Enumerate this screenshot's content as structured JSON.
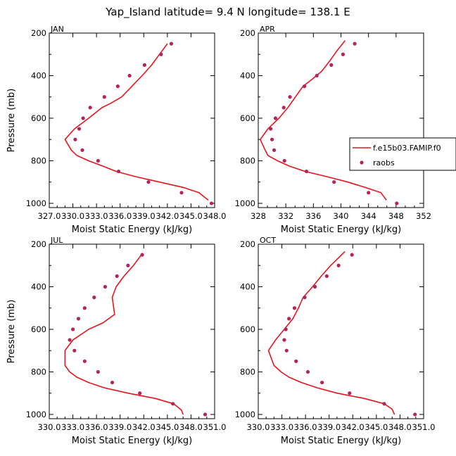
{
  "title": "Yap_Island  latitude= 9.4 N longitude= 138.1 E",
  "colors": {
    "model": "#e8141c",
    "raobs": "#b3245a",
    "axis": "#000000"
  },
  "legend": {
    "model_label": "f.e15b03.FAMIP.f0",
    "raobs_label": "raobs",
    "placement": "overlapping right edge of APR panel"
  },
  "chart_data": [
    {
      "type": "line",
      "panel_label": "JAN",
      "xlabel": "Moist Static Energy (kJ/kg)",
      "ylabel": "Pressure (mb)",
      "xlim": [
        327.0,
        348.0
      ],
      "ylim": [
        1020,
        200
      ],
      "xticks": [
        327,
        330,
        333,
        336,
        339,
        342,
        345,
        348
      ],
      "xtick_labels": [
        "327.0",
        "330.0",
        "333.0",
        "336.0",
        "339.0",
        "342.0",
        "345.0",
        "348.0"
      ],
      "yticks": [
        200,
        400,
        600,
        800,
        1000
      ],
      "ytick_labels": [
        "200",
        "400",
        "600",
        "800",
        "1000"
      ],
      "series": [
        {
          "name": "f.e15b03.FAMIP.f0",
          "style": "line",
          "points": [
            [
              347.2,
              985
            ],
            [
              346.0,
              950
            ],
            [
              344.0,
              925
            ],
            [
              341.0,
              900
            ],
            [
              338.0,
              875
            ],
            [
              335.5,
              850
            ],
            [
              333.8,
              825
            ],
            [
              332.0,
              800
            ],
            [
              330.5,
              775
            ],
            [
              329.8,
              750
            ],
            [
              329.0,
              700
            ],
            [
              330.2,
              650
            ],
            [
              332.0,
              600
            ],
            [
              333.7,
              550
            ],
            [
              334.8,
              530
            ],
            [
              336.2,
              500
            ],
            [
              337.5,
              450
            ],
            [
              338.8,
              400
            ],
            [
              340.0,
              350
            ],
            [
              341.0,
              300
            ],
            [
              342.0,
              250
            ]
          ]
        },
        {
          "name": "raobs",
          "style": "markers",
          "points": [
            [
              347.6,
              1000
            ],
            [
              343.8,
              950
            ],
            [
              339.6,
              900
            ],
            [
              335.8,
              850
            ],
            [
              333.2,
              800
            ],
            [
              331.2,
              750
            ],
            [
              330.3,
              700
            ],
            [
              330.8,
              650
            ],
            [
              331.3,
              600
            ],
            [
              332.2,
              550
            ],
            [
              334.0,
              500
            ],
            [
              335.7,
              450
            ],
            [
              337.2,
              400
            ],
            [
              339.1,
              350
            ],
            [
              341.2,
              300
            ],
            [
              342.5,
              250
            ]
          ]
        }
      ]
    },
    {
      "type": "line",
      "panel_label": "APR",
      "xlabel": "Moist Static Energy (kJ/kg)",
      "ylabel": "",
      "xlim": [
        328,
        352
      ],
      "ylim": [
        1020,
        200
      ],
      "xticks": [
        328,
        332,
        336,
        340,
        344,
        348,
        352
      ],
      "xtick_labels": [
        "328",
        "332",
        "336",
        "340",
        "344",
        "348",
        "352"
      ],
      "yticks": [
        200,
        400,
        600,
        800,
        1000
      ],
      "ytick_labels": [
        "200",
        "400",
        "600",
        "800",
        "1000"
      ],
      "series": [
        {
          "name": "f.e15b03.FAMIP.f0",
          "style": "line",
          "points": [
            [
              346.6,
              985
            ],
            [
              345.8,
              950
            ],
            [
              343.5,
              925
            ],
            [
              341.0,
              900
            ],
            [
              338.0,
              875
            ],
            [
              334.8,
              850
            ],
            [
              332.5,
              825
            ],
            [
              330.8,
              800
            ],
            [
              329.4,
              775
            ],
            [
              329.0,
              750
            ],
            [
              328.3,
              700
            ],
            [
              329.4,
              650
            ],
            [
              331.0,
              600
            ],
            [
              332.3,
              550
            ],
            [
              333.4,
              500
            ],
            [
              334.5,
              450
            ],
            [
              335.7,
              420
            ],
            [
              337.2,
              380
            ],
            [
              338.4,
              330
            ],
            [
              339.5,
              280
            ],
            [
              340.6,
              235
            ]
          ]
        },
        {
          "name": "raobs",
          "style": "markers",
          "points": [
            [
              348.1,
              1000
            ],
            [
              344.0,
              950
            ],
            [
              339.0,
              900
            ],
            [
              335.0,
              850
            ],
            [
              331.8,
              800
            ],
            [
              330.3,
              750
            ],
            [
              330.0,
              700
            ],
            [
              329.8,
              650
            ],
            [
              330.5,
              600
            ],
            [
              331.7,
              550
            ],
            [
              332.6,
              500
            ],
            [
              334.7,
              450
            ],
            [
              336.5,
              400
            ],
            [
              338.6,
              350
            ],
            [
              340.3,
              300
            ],
            [
              342.0,
              250
            ]
          ]
        }
      ]
    },
    {
      "type": "line",
      "panel_label": "JUL",
      "xlabel": "Moist Static Energy (kJ/kg)",
      "ylabel": "Pressure (mb)",
      "xlim": [
        330.0,
        351.0
      ],
      "ylim": [
        1020,
        200
      ],
      "xticks": [
        330,
        333,
        336,
        339,
        342,
        345,
        348,
        351
      ],
      "xtick_labels": [
        "330.0",
        "333.0",
        "336.0",
        "339.0",
        "342.0",
        "345.0",
        "348.0",
        "351.0"
      ],
      "yticks": [
        200,
        400,
        600,
        800,
        1000
      ],
      "ytick_labels": [
        "200",
        "400",
        "600",
        "800",
        "1000"
      ],
      "series": [
        {
          "name": "f.e15b03.FAMIP.f0",
          "style": "line",
          "points": [
            [
              347.0,
              1000
            ],
            [
              346.8,
              980
            ],
            [
              345.8,
              950
            ],
            [
              343.5,
              925
            ],
            [
              340.0,
              900
            ],
            [
              337.0,
              875
            ],
            [
              335.0,
              850
            ],
            [
              333.5,
              825
            ],
            [
              332.6,
              800
            ],
            [
              332.0,
              770
            ],
            [
              332.0,
              700
            ],
            [
              333.0,
              650
            ],
            [
              335.0,
              600
            ],
            [
              336.8,
              570
            ],
            [
              338.3,
              530
            ],
            [
              338.0,
              450
            ],
            [
              338.5,
              400
            ],
            [
              339.5,
              350
            ],
            [
              340.7,
              300
            ],
            [
              341.7,
              250
            ]
          ]
        },
        {
          "name": "raobs",
          "style": "markers",
          "points": [
            [
              349.8,
              1000
            ],
            [
              345.7,
              950
            ],
            [
              341.5,
              900
            ],
            [
              338.0,
              850
            ],
            [
              336.2,
              800
            ],
            [
              334.5,
              750
            ],
            [
              333.2,
              700
            ],
            [
              332.6,
              650
            ],
            [
              333.0,
              600
            ],
            [
              333.7,
              550
            ],
            [
              334.5,
              500
            ],
            [
              335.7,
              450
            ],
            [
              337.1,
              400
            ],
            [
              338.6,
              350
            ],
            [
              340.0,
              300
            ],
            [
              341.8,
              250
            ]
          ]
        }
      ]
    },
    {
      "type": "line",
      "panel_label": "OCT",
      "xlabel": "Moist Static Energy (kJ/kg)",
      "ylabel": "",
      "xlim": [
        330.0,
        351.0
      ],
      "ylim": [
        1020,
        200
      ],
      "xticks": [
        330,
        333,
        336,
        339,
        342,
        345,
        348,
        351
      ],
      "xtick_labels": [
        "330.0",
        "333.0",
        "336.0",
        "339.0",
        "342.0",
        "345.0",
        "348.0",
        "351.0"
      ],
      "yticks": [
        200,
        400,
        600,
        800,
        1000
      ],
      "ytick_labels": [
        "200",
        "400",
        "600",
        "800",
        "1000"
      ],
      "series": [
        {
          "name": "f.e15b03.FAMIP.f0",
          "style": "line",
          "points": [
            [
              347.3,
              1000
            ],
            [
              347.0,
              975
            ],
            [
              346.0,
              950
            ],
            [
              343.5,
              925
            ],
            [
              340.0,
              900
            ],
            [
              337.5,
              875
            ],
            [
              335.5,
              850
            ],
            [
              333.9,
              825
            ],
            [
              332.9,
              800
            ],
            [
              332.0,
              770
            ],
            [
              331.3,
              700
            ],
            [
              332.2,
              650
            ],
            [
              333.3,
              600
            ],
            [
              334.4,
              550
            ],
            [
              335.1,
              500
            ],
            [
              335.7,
              450
            ],
            [
              336.9,
              400
            ],
            [
              338.0,
              350
            ],
            [
              339.2,
              300
            ],
            [
              341.0,
              235
            ]
          ]
        },
        {
          "name": "raobs",
          "style": "markers",
          "points": [
            [
              349.9,
              1000
            ],
            [
              346.0,
              950
            ],
            [
              341.6,
              900
            ],
            [
              338.1,
              850
            ],
            [
              336.3,
              800
            ],
            [
              334.8,
              750
            ],
            [
              333.6,
              700
            ],
            [
              333.3,
              650
            ],
            [
              333.5,
              600
            ],
            [
              333.9,
              550
            ],
            [
              334.6,
              500
            ],
            [
              335.9,
              450
            ],
            [
              337.2,
              400
            ],
            [
              338.7,
              350
            ],
            [
              340.2,
              300
            ],
            [
              341.9,
              250
            ]
          ]
        }
      ]
    }
  ]
}
